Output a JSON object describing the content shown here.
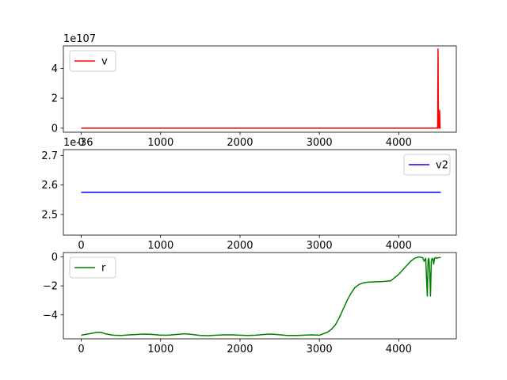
{
  "chart_data": [
    {
      "type": "line",
      "offset_text": "1e107",
      "x_ticks": [
        "0",
        "1000",
        "2000",
        "3000",
        "4000"
      ],
      "y_ticks": [
        "0",
        "2",
        "4"
      ],
      "xlim": [
        -225,
        4725
      ],
      "ylim": [
        -0.27,
        5.5
      ],
      "x_tick_values": [
        0,
        1000,
        2000,
        3000,
        4000
      ],
      "y_tick_values": [
        0,
        2,
        4
      ],
      "legend": "upper left",
      "series": [
        {
          "name": "v",
          "color": "#ff0000",
          "x": [
            0,
            4470,
            4480,
            4490,
            4495,
            4500,
            4505,
            4510,
            4515,
            4520,
            4525,
            4530
          ],
          "y": [
            0,
            0,
            0.02,
            0,
            5.3,
            0.1,
            0,
            0.05,
            1.2,
            0,
            0,
            0
          ]
        }
      ]
    },
    {
      "type": "line",
      "offset_text": "1e-36",
      "x_ticks": [
        "0",
        "1000",
        "2000",
        "3000",
        "4000"
      ],
      "y_ticks": [
        "2.5",
        "2.6",
        "2.7"
      ],
      "xlim": [
        -225,
        4725
      ],
      "ylim": [
        2.43,
        2.72
      ],
      "x_tick_values": [
        0,
        1000,
        2000,
        3000,
        4000
      ],
      "y_tick_values": [
        2.5,
        2.6,
        2.7
      ],
      "legend": "upper right",
      "series": [
        {
          "name": "v2",
          "color": "#0000ff",
          "x": [
            0,
            4530
          ],
          "y": [
            2.575,
            2.575
          ]
        }
      ]
    },
    {
      "type": "line",
      "offset_text": "",
      "x_ticks": [
        "0",
        "1000",
        "2000",
        "3000",
        "4000"
      ],
      "y_ticks": [
        "−4",
        "−2",
        "0"
      ],
      "xlim": [
        -225,
        4725
      ],
      "ylim": [
        -5.65,
        0.3
      ],
      "x_tick_values": [
        0,
        1000,
        2000,
        3000,
        4000
      ],
      "y_tick_values": [
        -4,
        -2,
        0
      ],
      "legend": "upper left",
      "series": [
        {
          "name": "r",
          "color": "#008000",
          "x": [
            0,
            100,
            200,
            250,
            300,
            400,
            500,
            600,
            700,
            800,
            900,
            1000,
            1100,
            1200,
            1300,
            1400,
            1500,
            1600,
            1700,
            1800,
            1900,
            2000,
            2100,
            2200,
            2300,
            2400,
            2500,
            2600,
            2700,
            2800,
            2900,
            3000,
            3100,
            3150,
            3200,
            3250,
            3300,
            3350,
            3400,
            3450,
            3500,
            3550,
            3600,
            3700,
            3800,
            3900,
            4000,
            4100,
            4150,
            4200,
            4250,
            4300,
            4320,
            4340,
            4350,
            4360,
            4370,
            4380,
            4390,
            4400,
            4410,
            4420,
            4430,
            4440,
            4450,
            4460,
            4470,
            4480,
            4500,
            4530
          ],
          "y": [
            -5.4,
            -5.3,
            -5.2,
            -5.2,
            -5.3,
            -5.4,
            -5.42,
            -5.38,
            -5.35,
            -5.32,
            -5.35,
            -5.4,
            -5.4,
            -5.35,
            -5.3,
            -5.35,
            -5.42,
            -5.43,
            -5.4,
            -5.38,
            -5.38,
            -5.4,
            -5.42,
            -5.4,
            -5.35,
            -5.32,
            -5.37,
            -5.42,
            -5.42,
            -5.4,
            -5.38,
            -5.4,
            -5.2,
            -5.0,
            -4.7,
            -4.2,
            -3.6,
            -3.0,
            -2.5,
            -2.1,
            -1.9,
            -1.8,
            -1.75,
            -1.72,
            -1.7,
            -1.65,
            -1.2,
            -0.6,
            -0.3,
            -0.1,
            0.0,
            -0.05,
            -0.3,
            -0.1,
            -1.5,
            -2.7,
            -0.2,
            -0.1,
            -1.0,
            -2.7,
            -0.3,
            -0.1,
            -0.15,
            -0.5,
            -0.1,
            -0.05,
            -0.05,
            -0.1,
            -0.05,
            -0.05
          ]
        }
      ]
    }
  ]
}
